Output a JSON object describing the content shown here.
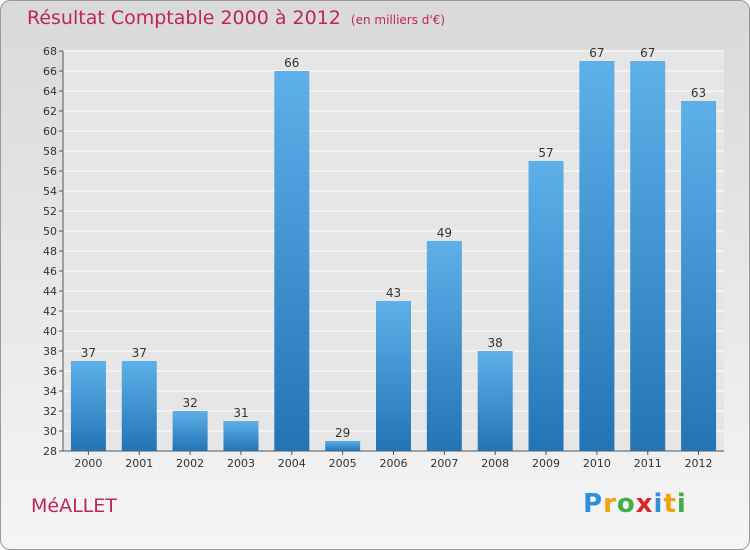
{
  "title": "Résultat Comptable 2000 à 2012",
  "subtitle": "(en milliers d'€)",
  "commune": "MéALLET",
  "logo": {
    "letters": [
      "P",
      "r",
      "o",
      "x",
      "i",
      "t",
      "i"
    ],
    "colors": [
      "#2f8fd8",
      "#f0a30a",
      "#3fae49",
      "#d8262e",
      "#2f8fd8",
      "#f0a30a",
      "#3fae49"
    ]
  },
  "colors": {
    "title": "#c0245c",
    "bar_top": "#5eb0ea",
    "bar_bottom": "#2474b4",
    "plot_bg": "#e6e6e6",
    "grid": "#ffffff"
  },
  "chart_data": {
    "type": "bar",
    "categories": [
      "2000",
      "2001",
      "2002",
      "2003",
      "2004",
      "2005",
      "2006",
      "2007",
      "2008",
      "2009",
      "2010",
      "2011",
      "2012"
    ],
    "values": [
      37,
      37,
      32,
      31,
      66,
      29,
      43,
      49,
      38,
      57,
      67,
      67,
      63
    ],
    "ylim": [
      28,
      68
    ],
    "yticks": [
      28,
      30,
      32,
      34,
      36,
      38,
      40,
      42,
      44,
      46,
      48,
      50,
      52,
      54,
      56,
      58,
      60,
      62,
      64,
      66,
      68
    ],
    "xlabel": "",
    "ylabel": "",
    "grid": true
  }
}
